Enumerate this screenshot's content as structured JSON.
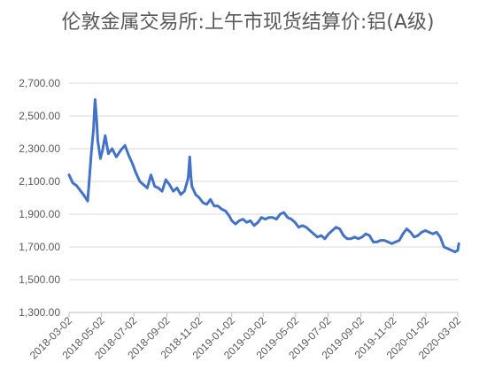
{
  "chart_data": {
    "type": "line",
    "title": "伦敦金属交易所:上午市现货结算价:铝(A级)",
    "xlabel": "",
    "ylabel": "",
    "ylim": [
      1300,
      2700
    ],
    "y_ticks": [
      "1,300.00",
      "1,500.00",
      "1,700.00",
      "1,900.00",
      "2,100.00",
      "2,300.00",
      "2,500.00",
      "2,700.00"
    ],
    "x_ticks": [
      "2018-03-02",
      "2018-05-02",
      "2018-07-02",
      "2018-09-02",
      "2018-11-02",
      "2019-01-02",
      "2019-03-02",
      "2019-05-02",
      "2019-07-02",
      "2019-09-02",
      "2019-11-02",
      "2020-01-02",
      "2020-03-02"
    ],
    "grid": true,
    "legend": "none",
    "series": [
      {
        "color": "#4472c4",
        "x": [
          "2018-03-02",
          "2018-03-09",
          "2018-03-16",
          "2018-03-23",
          "2018-03-30",
          "2018-04-06",
          "2018-04-10",
          "2018-04-13",
          "2018-04-17",
          "2018-04-19",
          "2018-04-20",
          "2018-04-23",
          "2018-04-25",
          "2018-04-30",
          "2018-05-04",
          "2018-05-09",
          "2018-05-15",
          "2018-05-22",
          "2018-05-30",
          "2018-06-07",
          "2018-06-15",
          "2018-06-22",
          "2018-06-29",
          "2018-07-06",
          "2018-07-13",
          "2018-07-20",
          "2018-07-27",
          "2018-08-03",
          "2018-08-10",
          "2018-08-17",
          "2018-08-24",
          "2018-08-31",
          "2018-09-07",
          "2018-09-14",
          "2018-09-21",
          "2018-09-28",
          "2018-10-05",
          "2018-10-12",
          "2018-10-15",
          "2018-10-17",
          "2018-10-19",
          "2018-10-26",
          "2018-11-02",
          "2018-11-09",
          "2018-11-16",
          "2018-11-23",
          "2018-11-30",
          "2018-12-07",
          "2018-12-14",
          "2018-12-21",
          "2018-12-28",
          "2019-01-02",
          "2019-01-09",
          "2019-01-16",
          "2019-01-23",
          "2019-01-30",
          "2019-02-06",
          "2019-02-13",
          "2019-02-20",
          "2019-02-27",
          "2019-03-06",
          "2019-03-13",
          "2019-03-20",
          "2019-03-27",
          "2019-04-03",
          "2019-04-10",
          "2019-04-17",
          "2019-04-24",
          "2019-05-01",
          "2019-05-08",
          "2019-05-15",
          "2019-05-22",
          "2019-05-29",
          "2019-06-05",
          "2019-06-12",
          "2019-06-19",
          "2019-06-26",
          "2019-07-03",
          "2019-07-10",
          "2019-07-17",
          "2019-07-24",
          "2019-07-31",
          "2019-08-07",
          "2019-08-14",
          "2019-08-21",
          "2019-08-28",
          "2019-09-04",
          "2019-09-11",
          "2019-09-18",
          "2019-09-25",
          "2019-10-02",
          "2019-10-09",
          "2019-10-16",
          "2019-10-23",
          "2019-10-30",
          "2019-11-06",
          "2019-11-13",
          "2019-11-20",
          "2019-11-27",
          "2019-12-04",
          "2019-12-11",
          "2019-12-18",
          "2019-12-25",
          "2020-01-01",
          "2020-01-08",
          "2020-01-15",
          "2020-01-22",
          "2020-01-29",
          "2020-02-05",
          "2020-02-12",
          "2020-02-19",
          "2020-02-26",
          "2020-03-02",
          "2020-03-04"
        ],
        "values": [
          2140,
          2090,
          2075,
          2045,
          2015,
          1980,
          2150,
          2280,
          2420,
          2550,
          2600,
          2470,
          2350,
          2240,
          2290,
          2380,
          2270,
          2300,
          2250,
          2290,
          2320,
          2260,
          2210,
          2150,
          2100,
          2080,
          2060,
          2140,
          2070,
          2060,
          2040,
          2110,
          2080,
          2040,
          2060,
          2020,
          2040,
          2120,
          2250,
          2140,
          2070,
          2020,
          2000,
          1970,
          1960,
          1990,
          1950,
          1950,
          1930,
          1920,
          1890,
          1860,
          1840,
          1860,
          1870,
          1850,
          1860,
          1830,
          1850,
          1880,
          1870,
          1880,
          1880,
          1870,
          1900,
          1910,
          1880,
          1870,
          1850,
          1820,
          1830,
          1820,
          1800,
          1780,
          1760,
          1770,
          1750,
          1780,
          1800,
          1820,
          1810,
          1770,
          1750,
          1750,
          1760,
          1750,
          1760,
          1780,
          1770,
          1730,
          1730,
          1740,
          1740,
          1730,
          1720,
          1730,
          1740,
          1780,
          1810,
          1790,
          1760,
          1770,
          1790,
          1800,
          1790,
          1780,
          1790,
          1760,
          1700,
          1690,
          1680,
          1670,
          1680,
          1720
        ]
      }
    ]
  }
}
